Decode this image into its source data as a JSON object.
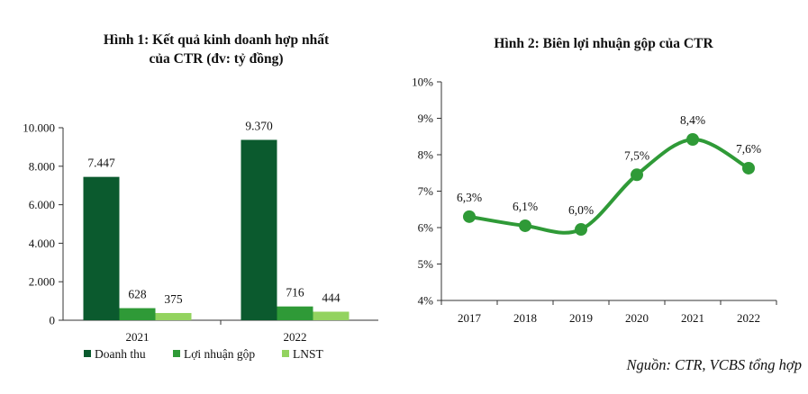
{
  "chart_data": [
    {
      "type": "bar",
      "title": "Hình 1: Kết quả kinh doanh hợp nhất",
      "subtitle": "của CTR (đv: tỷ đồng)",
      "categories": [
        "2021",
        "2022"
      ],
      "series": [
        {
          "name": "Doanh thu",
          "values": [
            7447,
            9370
          ],
          "labels": [
            "7.447",
            "9.370"
          ],
          "color": "#0b5a2e"
        },
        {
          "name": "Lợi nhuận gộp",
          "values": [
            628,
            716
          ],
          "labels": [
            "628",
            "716"
          ],
          "color": "#2f9a37"
        },
        {
          "name": "LNST",
          "values": [
            375,
            444
          ],
          "labels": [
            "375",
            "444"
          ],
          "color": "#93d35f"
        }
      ],
      "yticks": [
        0,
        2000,
        4000,
        6000,
        8000,
        10000
      ],
      "ytick_labels": [
        "0",
        "2.000",
        "4.000",
        "6.000",
        "8.000",
        "10.000"
      ],
      "ylim": [
        0,
        10000
      ],
      "xlabel": "",
      "ylabel": "",
      "legend": "bottom",
      "grid": false
    },
    {
      "type": "line",
      "title": "Hình 2: Biên lợi nhuận gộp của CTR",
      "x": [
        "2017",
        "2018",
        "2019",
        "2020",
        "2021",
        "2022"
      ],
      "series": [
        {
          "name": "Biên lợi nhuận gộp",
          "values": [
            6.3,
            6.05,
            5.95,
            7.45,
            8.42,
            7.63
          ],
          "labels": [
            "6,3%",
            "6,1%",
            "6,0%",
            "7,5%",
            "8,4%",
            "7,6%"
          ],
          "color": "#2f9a37"
        }
      ],
      "yticks": [
        4,
        5,
        6,
        7,
        8,
        9,
        10
      ],
      "ytick_labels": [
        "4%",
        "5%",
        "6%",
        "7%",
        "8%",
        "9%",
        "10%"
      ],
      "ylim": [
        4,
        10
      ],
      "xlabel": "",
      "ylabel": "",
      "grid": false
    }
  ],
  "source": "Nguồn: CTR, VCBS tổng hợp"
}
